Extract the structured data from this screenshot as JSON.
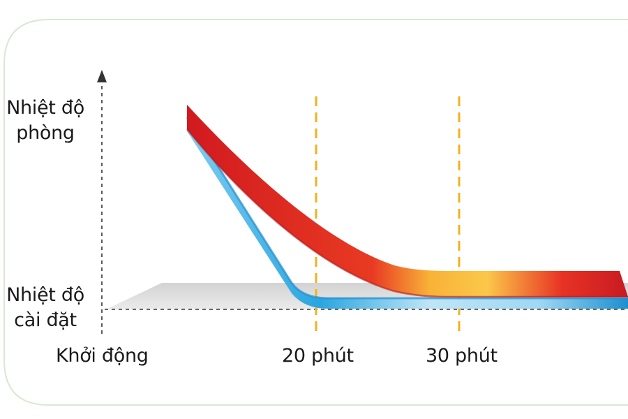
{
  "chart_data": {
    "type": "line",
    "ylabel_top": [
      "Nhiệt độ",
      "phòng"
    ],
    "ylabel_bottom": [
      "Nhiệt độ",
      "cài đặt"
    ],
    "x_ticks": [
      "Khởi động",
      "20 phút",
      "30 phút"
    ],
    "series": [
      {
        "color_start": "#d2151d",
        "color_mid": "#f7b53a"
      },
      {
        "color_start": "#2fa2dc",
        "color_end": "#bfe6f8"
      }
    ],
    "marker_color": "#f2b21b",
    "axis_color": "#333333",
    "frame_color": "#d9e8d2"
  }
}
